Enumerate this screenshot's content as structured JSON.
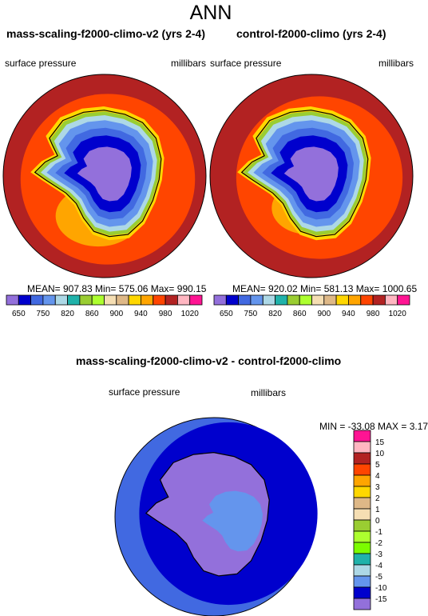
{
  "page_title": "ANN",
  "panels": [
    {
      "title": "mass-scaling-f2000-climo-v2 (yrs 2-4)",
      "left_label": "surface pressure",
      "units": "millibars",
      "stats": "MEAN= 907.83  Min= 575.06  Max= 990.15"
    },
    {
      "title": "control-f2000-climo (yrs 2-4)",
      "left_label": "surface pressure",
      "units": "millibars",
      "stats": "MEAN= 920.02  Min= 581.13  Max= 1000.65"
    },
    {
      "title": "mass-scaling-f2000-climo-v2 - control-f2000-climo",
      "left_label": "surface pressure",
      "units": "millibars",
      "stats": "MIN = -33.08 MAX =  3.17"
    }
  ],
  "chart_data": [
    {
      "type": "heatmap",
      "title": "mass-scaling-f2000-climo-v2 (yrs 2-4)",
      "variable": "surface pressure",
      "units": "millibars",
      "projection": "south polar stereographic",
      "stats": {
        "mean": 907.83,
        "min": 575.06,
        "max": 990.15
      },
      "colorbar": {
        "orientation": "horizontal",
        "tick_labels": [
          "650",
          "750",
          "820",
          "860",
          "900",
          "940",
          "980",
          "1020"
        ],
        "colors": [
          "#9370DB",
          "#0000CD",
          "#4169E1",
          "#6495ED",
          "#ADD8E6",
          "#20B2AA",
          "#9ACD32",
          "#ADFF2F",
          "#F5DEB3",
          "#DEB887",
          "#FFD700",
          "#FFA500",
          "#FF4500",
          "#B22222",
          "#FFB6C1",
          "#FF1493"
        ]
      }
    },
    {
      "type": "heatmap",
      "title": "control-f2000-climo (yrs 2-4)",
      "variable": "surface pressure",
      "units": "millibars",
      "projection": "south polar stereographic",
      "stats": {
        "mean": 920.02,
        "min": 581.13,
        "max": 1000.65
      },
      "colorbar": {
        "orientation": "horizontal",
        "tick_labels": [
          "650",
          "750",
          "820",
          "860",
          "900",
          "940",
          "980",
          "1020"
        ],
        "colors": [
          "#9370DB",
          "#0000CD",
          "#4169E1",
          "#6495ED",
          "#ADD8E6",
          "#20B2AA",
          "#9ACD32",
          "#ADFF2F",
          "#F5DEB3",
          "#DEB887",
          "#FFD700",
          "#FFA500",
          "#FF4500",
          "#B22222",
          "#FFB6C1",
          "#FF1493"
        ]
      }
    },
    {
      "type": "heatmap",
      "title": "mass-scaling-f2000-climo-v2 - control-f2000-climo",
      "variable": "surface pressure",
      "units": "millibars",
      "projection": "south polar stereographic",
      "stats": {
        "min": -33.08,
        "max": 3.17
      },
      "colorbar": {
        "orientation": "vertical",
        "tick_labels": [
          "15",
          "10",
          "5",
          "4",
          "3",
          "2",
          "1",
          "0",
          "-1",
          "-2",
          "-3",
          "-4",
          "-5",
          "-10",
          "-15"
        ],
        "colors": [
          "#FF1493",
          "#FFB6C1",
          "#B22222",
          "#FF4500",
          "#FFA500",
          "#FFD700",
          "#DEB887",
          "#F5DEB3",
          "#9ACD32",
          "#ADFF2F",
          "#7CFC00",
          "#20B2AA",
          "#ADD8E6",
          "#6495ED",
          "#0000CD",
          "#9370DB"
        ]
      }
    }
  ]
}
